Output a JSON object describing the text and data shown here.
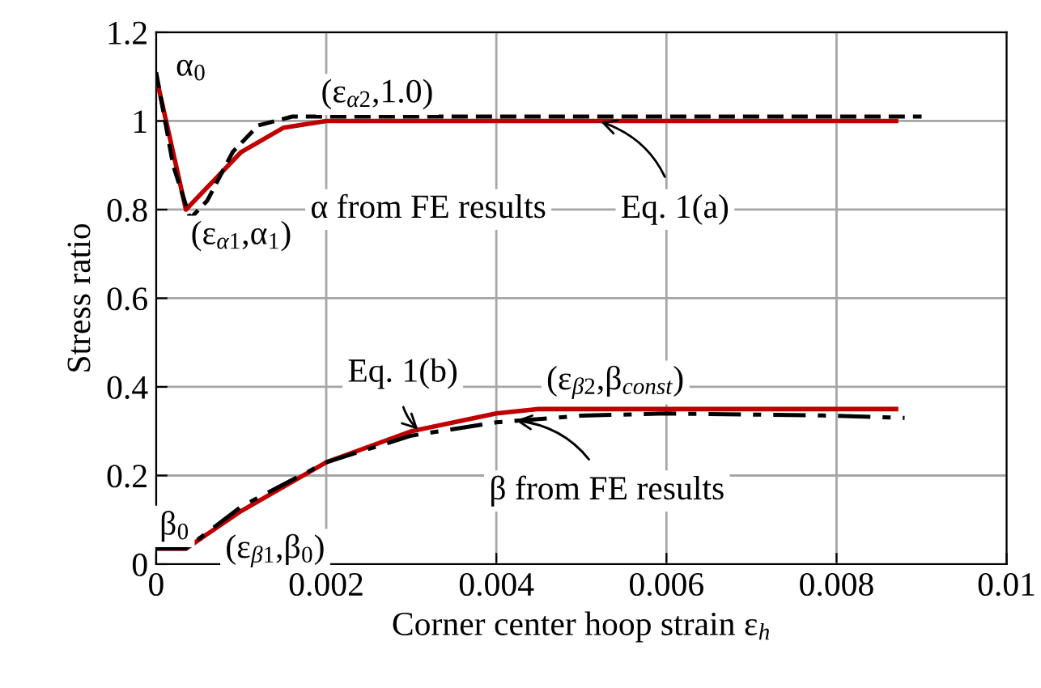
{
  "chart_data": {
    "type": "line",
    "xlabel": "Corner center hoop strain ε$_{h}$",
    "ylabel": "Stress ratio",
    "xlim": [
      0,
      0.01
    ],
    "xticks": [
      0,
      0.002,
      0.004,
      0.006,
      0.008,
      0.01
    ],
    "ylim": [
      0,
      1.2
    ],
    "yticks": [
      0,
      0.2,
      0.4,
      0.6,
      0.8,
      1,
      1.2
    ],
    "grid": true,
    "series": [
      {
        "color": "#c00000",
        "line_style": "solid",
        "x": [
          0,
          0.00035,
          0.0007,
          0.001,
          0.0015,
          0.002,
          0.0087
        ],
        "values": [
          1.1,
          0.8,
          0.87,
          0.93,
          0.985,
          1.0,
          1.0
        ]
      },
      {
        "color": "#000000",
        "line_style": "dashed",
        "x": [
          0,
          0.0002,
          0.0004,
          0.0006,
          0.0009,
          0.0012,
          0.0016,
          0.009
        ],
        "values": [
          1.11,
          0.9,
          0.78,
          0.82,
          0.93,
          0.99,
          1.01,
          1.01
        ]
      },
      {
        "color": "#c00000",
        "line_style": "solid",
        "x": [
          0,
          0.00035,
          0.001,
          0.002,
          0.003,
          0.004,
          0.0045,
          0.0087
        ],
        "values": [
          0.035,
          0.035,
          0.12,
          0.23,
          0.3,
          0.34,
          0.35,
          0.35
        ]
      },
      {
        "color": "#000000",
        "line_style": "dashdot",
        "x": [
          0,
          0.00035,
          0.001,
          0.002,
          0.003,
          0.004,
          0.005,
          0.006,
          0.008,
          0.0088
        ],
        "values": [
          0.035,
          0.035,
          0.13,
          0.23,
          0.29,
          0.32,
          0.335,
          0.34,
          0.335,
          0.33
        ]
      }
    ],
    "annotations": [
      {
        "text": "α$_{0}$",
        "x": 0,
        "y": 1.1
      },
      {
        "text": "(ε$_{α2}$,1.0)",
        "x": 0.002,
        "y": 1.0
      },
      {
        "text": "(ε$_{α1}$,α$_{1}$)",
        "x": 0.00035,
        "y": 0.8
      },
      {
        "text": "α from FE results",
        "x": 0.0012,
        "y": 0.97
      },
      {
        "text": "Eq. 1(a)",
        "x": 0.0052,
        "y": 1.0
      },
      {
        "text": "Eq. 1(b)",
        "x": 0.0031,
        "y": 0.3
      },
      {
        "text": "(ε$_{β2}$,β$_{const}$)",
        "x": 0.0045,
        "y": 0.35
      },
      {
        "text": "β from FE results",
        "x": 0.0042,
        "y": 0.325
      },
      {
        "text": "β$_{0}$",
        "x": 0,
        "y": 0.035
      },
      {
        "text": "(ε$_{β1}$,β$_{0}$)",
        "x": 0.00035,
        "y": 0.035
      }
    ]
  }
}
